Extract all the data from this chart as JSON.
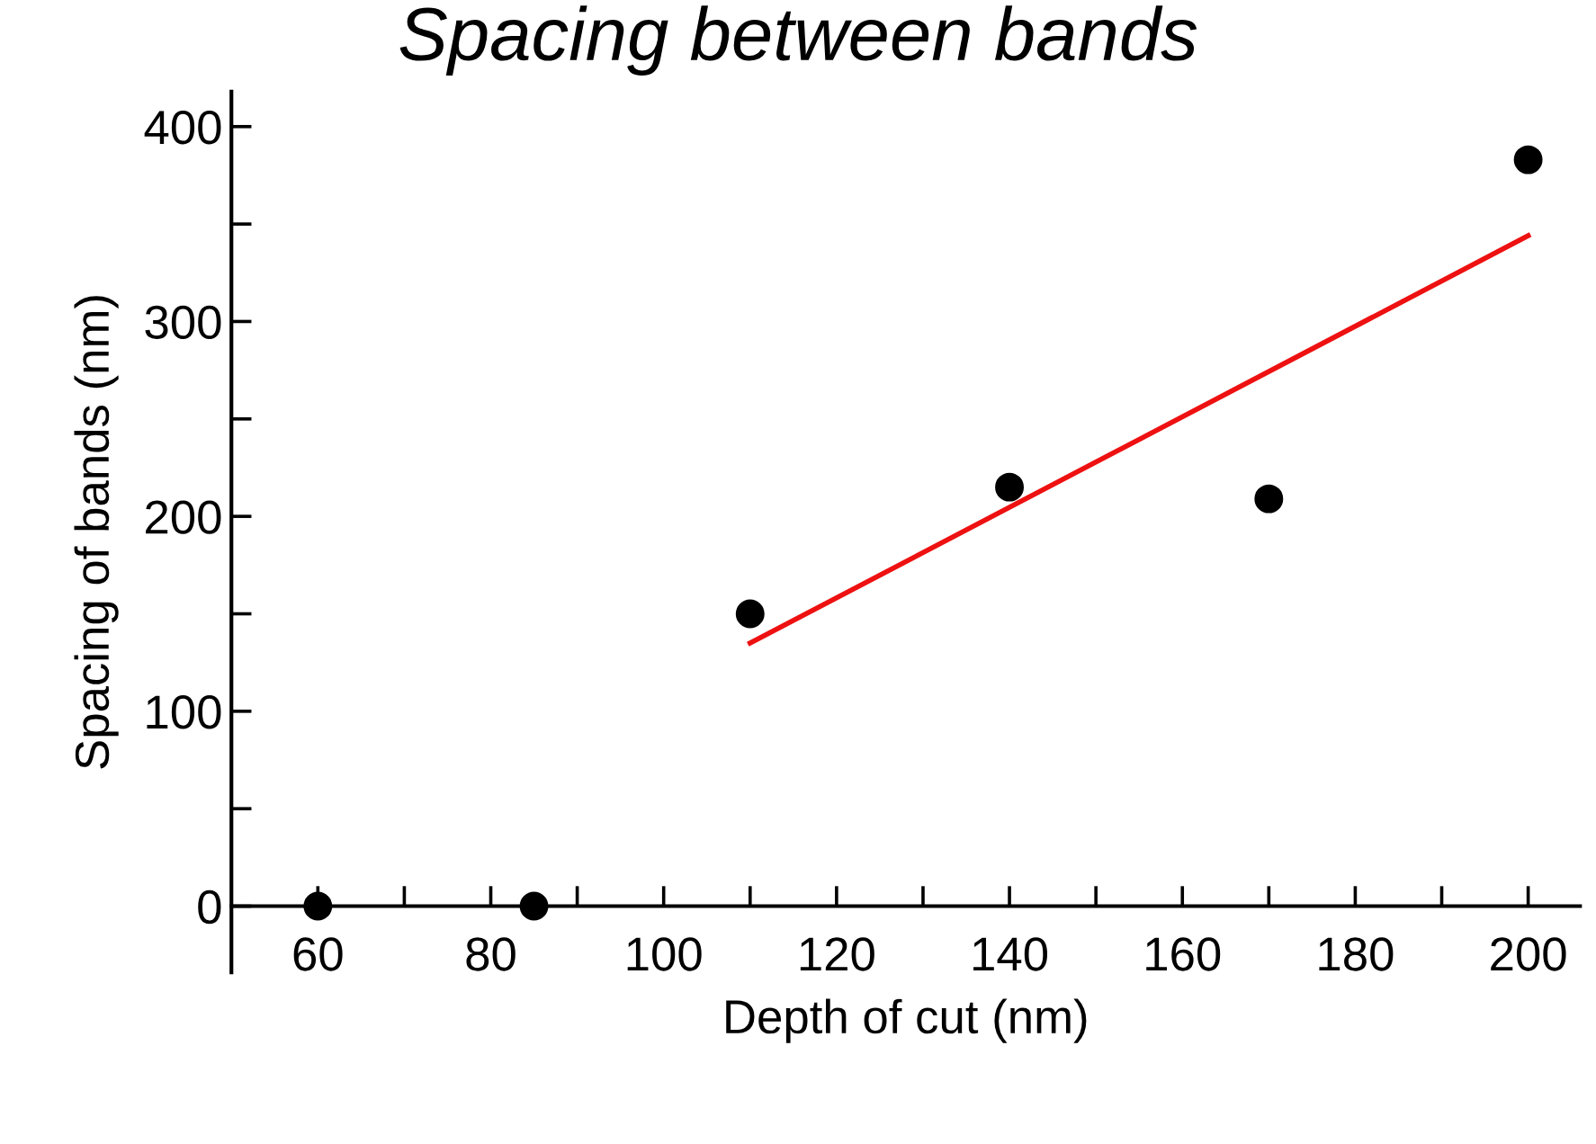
{
  "chart_data": {
    "type": "scatter",
    "title": "Spacing between bands",
    "xlabel": "Depth of cut (nm)",
    "ylabel": "Spacing of bands (nm)",
    "series": [
      {
        "color": "#000000",
        "marker": "circle",
        "x": [
          60,
          85,
          110,
          140,
          170,
          200
        ],
        "values": [
          0,
          0,
          150,
          215,
          209,
          383
        ]
      },
      {
        "type": "line",
        "color": "#ee1111",
        "marker": "none",
        "line_style": "solid",
        "x": [
          110,
          200
        ],
        "values": [
          135,
          344
        ]
      }
    ],
    "xlim": [
      50,
      206
    ],
    "ylim": [
      -34,
      418
    ],
    "xticks": [
      60,
      {
        "value": 70,
        "label": null
      },
      80,
      {
        "value": 90,
        "label": null
      },
      100,
      {
        "value": 110,
        "label": null
      },
      120,
      {
        "value": 130,
        "label": null
      },
      140,
      {
        "value": 150,
        "label": null
      },
      160,
      {
        "value": 170,
        "label": null
      },
      180,
      {
        "value": 190,
        "label": null
      },
      200
    ],
    "yticks": [
      0,
      {
        "value": 50,
        "label": null
      },
      100,
      {
        "value": 150,
        "label": null
      },
      200,
      {
        "value": 250,
        "label": null
      },
      300,
      {
        "value": 350,
        "label": null
      },
      400
    ],
    "grid": false
  }
}
